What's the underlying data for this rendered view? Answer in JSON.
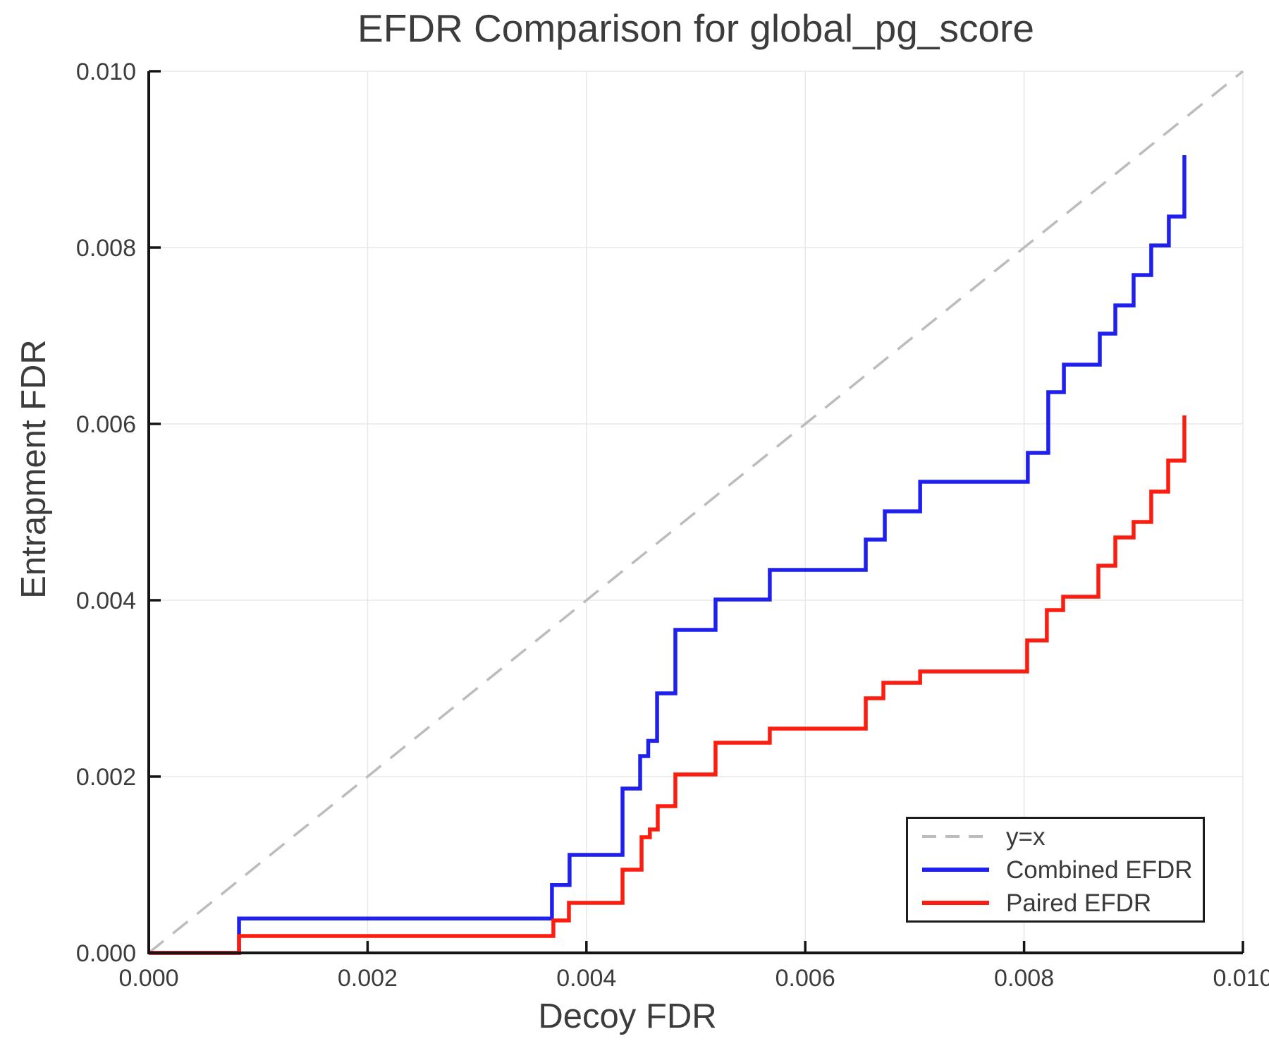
{
  "title": "EFDR Comparison for global_pg_score",
  "colors": {
    "combined_efdr": "#2020ee",
    "paired_efdr": "#fb1d10",
    "reference_line": "#bcbcbc",
    "grid": "#e9e9e9",
    "spine": "#141414",
    "text": "#3c3c3c"
  },
  "chart_data": {
    "type": "line",
    "title": "EFDR Comparison for global_pg_score",
    "xlabel": "Decoy FDR",
    "ylabel": "Entrapment FDR",
    "xlim": [
      0.0,
      0.01
    ],
    "ylim": [
      0.0,
      0.01
    ],
    "grid": true,
    "legend_position": "lower right",
    "x_ticks": [
      0.0,
      0.002,
      0.004,
      0.006,
      0.008,
      0.01
    ],
    "y_ticks": [
      0.0,
      0.002,
      0.004,
      0.006,
      0.008,
      0.01
    ],
    "x_tick_labels": [
      "0.000",
      "0.002",
      "0.004",
      "0.006",
      "0.008",
      "0.010"
    ],
    "y_tick_labels": [
      "0.000",
      "0.002",
      "0.004",
      "0.006",
      "0.008",
      "0.010"
    ],
    "series": [
      {
        "name": "y=x",
        "style": "dashed",
        "interp": "linear",
        "color": "#bcbcbc",
        "points": [
          [
            0.0,
            0.0
          ],
          [
            0.01,
            0.01
          ]
        ]
      },
      {
        "name": "Combined EFDR",
        "style": "solid",
        "interp": "step-post",
        "color": "#2020ee",
        "points": [
          [
            0.0,
            0.0
          ],
          [
            0.000825,
            0.00039
          ],
          [
            0.003685,
            0.00077
          ],
          [
            0.003846,
            0.001112
          ],
          [
            0.00433,
            0.001864
          ],
          [
            0.004491,
            0.002232
          ],
          [
            0.004565,
            0.002405
          ],
          [
            0.004646,
            0.002944
          ],
          [
            0.004813,
            0.003664
          ],
          [
            0.00518,
            0.004008
          ],
          [
            0.005676,
            0.004344
          ],
          [
            0.006553,
            0.004688
          ],
          [
            0.006727,
            0.005008
          ],
          [
            0.00705,
            0.005344
          ],
          [
            0.008034,
            0.005672
          ],
          [
            0.008221,
            0.00636
          ],
          [
            0.008364,
            0.006672
          ],
          [
            0.008692,
            0.007024
          ],
          [
            0.008834,
            0.007344
          ],
          [
            0.009001,
            0.007688
          ],
          [
            0.009162,
            0.008024
          ],
          [
            0.009323,
            0.008352
          ],
          [
            0.009465,
            0.009048
          ]
        ]
      },
      {
        "name": "Paired EFDR",
        "style": "solid",
        "interp": "step-post",
        "color": "#fb1d10",
        "points": [
          [
            0.0,
            0.0
          ],
          [
            0.000825,
            0.000192
          ],
          [
            0.003698,
            0.000368
          ],
          [
            0.00384,
            0.000568
          ],
          [
            0.00433,
            0.000944
          ],
          [
            0.004504,
            0.001312
          ],
          [
            0.00458,
            0.0014
          ],
          [
            0.004652,
            0.001664
          ],
          [
            0.004813,
            0.002024
          ],
          [
            0.00518,
            0.002384
          ],
          [
            0.005676,
            0.002544
          ],
          [
            0.006553,
            0.002888
          ],
          [
            0.006714,
            0.003064
          ],
          [
            0.00705,
            0.003192
          ],
          [
            0.008028,
            0.003544
          ],
          [
            0.008208,
            0.003888
          ],
          [
            0.008357,
            0.00404
          ],
          [
            0.008679,
            0.004392
          ],
          [
            0.008834,
            0.004712
          ],
          [
            0.009001,
            0.004888
          ],
          [
            0.009162,
            0.005232
          ],
          [
            0.009317,
            0.005584
          ],
          [
            0.009465,
            0.006096
          ]
        ]
      }
    ]
  }
}
